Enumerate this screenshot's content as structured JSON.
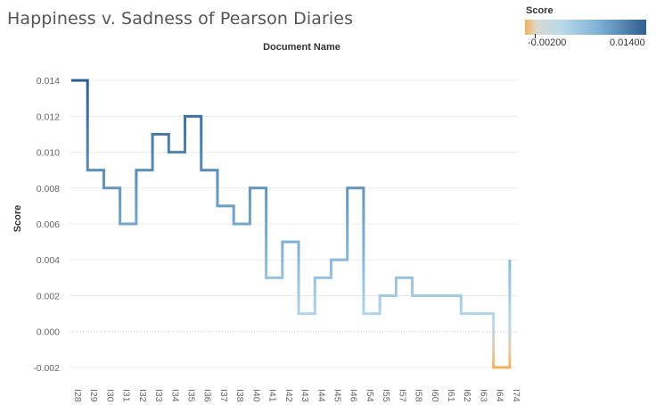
{
  "title": "Happiness v. Sadness of Pearson Diaries",
  "legend": {
    "title": "Score",
    "min_label": "-0.00200",
    "max_label": "0.01400",
    "colors": [
      "#f5b05a",
      "#b9d9ea",
      "#2f5f90"
    ]
  },
  "chart_data": {
    "type": "line",
    "line_style": "step",
    "title": "Happiness v. Sadness of Pearson Diaries",
    "xlabel": "Document Name",
    "ylabel": "Score",
    "xlabel_position": "top",
    "ylim": [
      -0.003,
      0.0155
    ],
    "yticks": [
      "0.014",
      "0.012",
      "0.010",
      "0.008",
      "0.006",
      "0.004",
      "0.002",
      "0.000",
      "-0.002"
    ],
    "ytick_values": [
      0.014,
      0.012,
      0.01,
      0.008,
      0.006,
      0.004,
      0.002,
      0.0,
      -0.002
    ],
    "categories": [
      "I28",
      "I29",
      "I30",
      "I31",
      "I32",
      "I33",
      "I34",
      "I35",
      "I36",
      "I37",
      "I38",
      "I40",
      "I41",
      "I42",
      "I43",
      "I44",
      "I45",
      "I46",
      "I54",
      "I55",
      "I57",
      "I58",
      "I60",
      "I61",
      "I62",
      "I63",
      "I64",
      "I74"
    ],
    "x_tick_labels": [
      "I28",
      "I29",
      "I30",
      "I31",
      "I32",
      "I33",
      "I34",
      "I35",
      "I36",
      "I37",
      "I38",
      "I40",
      "I41",
      "I42",
      "I43",
      "I44",
      "I45",
      "I46",
      "I54",
      "I55",
      "I57",
      "I58",
      "I60",
      "I61",
      "I62",
      "I63",
      "I64",
      "I74"
    ],
    "values": [
      0.014,
      0.009,
      0.008,
      0.006,
      0.009,
      0.011,
      0.01,
      0.012,
      0.009,
      0.007,
      0.006,
      0.008,
      0.003,
      0.005,
      0.001,
      0.003,
      0.004,
      0.008,
      0.001,
      0.002,
      0.003,
      0.002,
      0.002,
      0.002,
      0.001,
      0.001,
      -0.002,
      0.004
    ],
    "color_scale": {
      "min": -0.002,
      "max": 0.014
    },
    "grid": true,
    "legend_placement": "top-right"
  }
}
